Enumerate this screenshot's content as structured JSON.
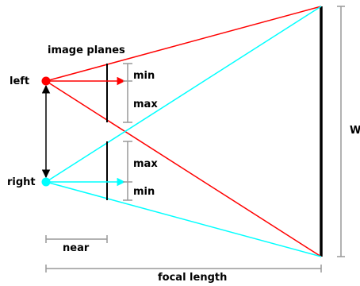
{
  "labels": {
    "image_planes": "image planes",
    "left": "left",
    "right": "right",
    "min_top": "min",
    "max_top": "max",
    "max_bottom": "max",
    "min_bottom": "min",
    "near": "near",
    "focal_length": "focal length",
    "width": "W"
  },
  "colors": {
    "left_eye": "#ff0000",
    "right_eye": "#00ffff",
    "dimension": "#999999",
    "plane": "#000000"
  }
}
